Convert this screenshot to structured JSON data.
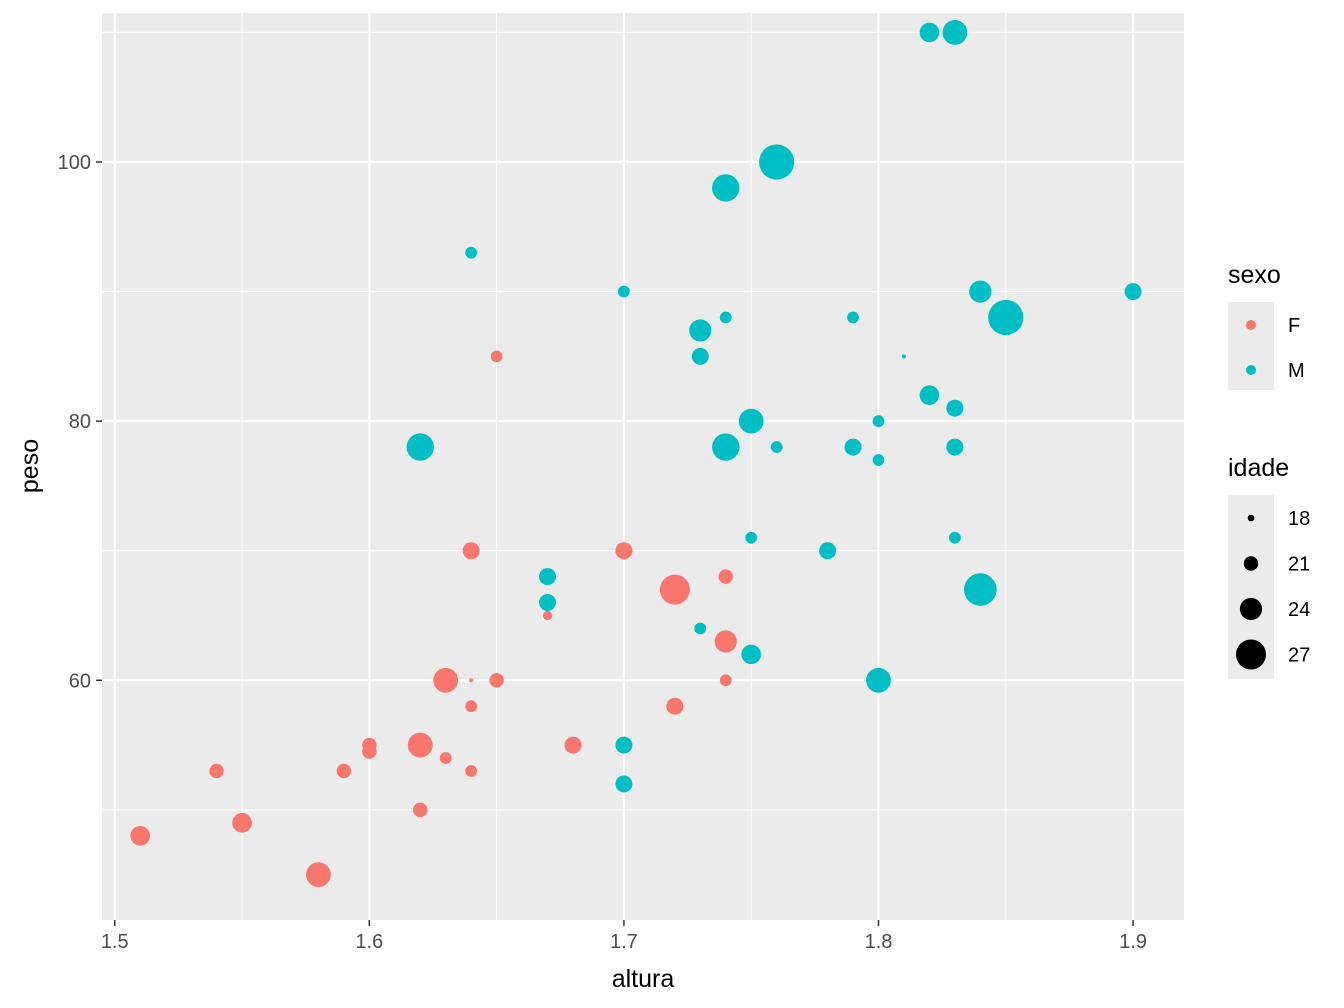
{
  "chart_data": {
    "type": "scatter",
    "xlabel": "altura",
    "ylabel": "peso",
    "xlim": [
      1.495,
      1.92
    ],
    "ylim": [
      41.5,
      111.5
    ],
    "x_ticks": [
      {
        "value": 1.5,
        "label": "1.5"
      },
      {
        "value": 1.6,
        "label": "1.6"
      },
      {
        "value": 1.7,
        "label": "1.7"
      },
      {
        "value": 1.8,
        "label": "1.8"
      },
      {
        "value": 1.9,
        "label": "1.9"
      }
    ],
    "y_ticks": [
      {
        "value": 60,
        "label": "60"
      },
      {
        "value": 80,
        "label": "80"
      },
      {
        "value": 100,
        "label": "100"
      }
    ],
    "x_minor": [
      1.55,
      1.65,
      1.75,
      1.85
    ],
    "y_minor": [
      50,
      70,
      90,
      110
    ],
    "grid": true,
    "background": "#ebebeb",
    "color_legend": {
      "title": "sexo",
      "items": [
        {
          "label": "F",
          "color": "#f8766d"
        },
        {
          "label": "M",
          "color": "#00bfc4"
        }
      ]
    },
    "size_legend": {
      "title": "idade",
      "items": [
        {
          "label": "18",
          "value": 18
        },
        {
          "label": "21",
          "value": 21
        },
        {
          "label": "24",
          "value": 24
        },
        {
          "label": "27",
          "value": 27
        }
      ]
    },
    "legend_position": "right",
    "series": [
      {
        "name": "F",
        "color": "#f8766d",
        "points": [
          {
            "x": 1.51,
            "y": 48,
            "idade": 23
          },
          {
            "x": 1.54,
            "y": 53,
            "idade": 21
          },
          {
            "x": 1.55,
            "y": 49,
            "idade": 23
          },
          {
            "x": 1.58,
            "y": 45,
            "idade": 25
          },
          {
            "x": 1.59,
            "y": 53,
            "idade": 21
          },
          {
            "x": 1.6,
            "y": 55,
            "idade": 21
          },
          {
            "x": 1.6,
            "y": 54.5,
            "idade": 21
          },
          {
            "x": 1.62,
            "y": 55,
            "idade": 25
          },
          {
            "x": 1.62,
            "y": 50,
            "idade": 21
          },
          {
            "x": 1.63,
            "y": 60,
            "idade": 25
          },
          {
            "x": 1.63,
            "y": 54,
            "idade": 20
          },
          {
            "x": 1.64,
            "y": 70,
            "idade": 22
          },
          {
            "x": 1.64,
            "y": 60,
            "idade": 17
          },
          {
            "x": 1.64,
            "y": 58,
            "idade": 20
          },
          {
            "x": 1.64,
            "y": 53,
            "idade": 20
          },
          {
            "x": 1.65,
            "y": 85,
            "idade": 20
          },
          {
            "x": 1.65,
            "y": 60,
            "idade": 21
          },
          {
            "x": 1.67,
            "y": 65,
            "idade": 19
          },
          {
            "x": 1.68,
            "y": 55,
            "idade": 22
          },
          {
            "x": 1.7,
            "y": 70,
            "idade": 22
          },
          {
            "x": 1.72,
            "y": 67,
            "idade": 27
          },
          {
            "x": 1.72,
            "y": 58,
            "idade": 22
          },
          {
            "x": 1.74,
            "y": 68,
            "idade": 21
          },
          {
            "x": 1.74,
            "y": 63,
            "idade": 24
          },
          {
            "x": 1.74,
            "y": 60,
            "idade": 20
          }
        ]
      },
      {
        "name": "M",
        "color": "#00bfc4",
        "points": [
          {
            "x": 1.62,
            "y": 78,
            "idade": 26
          },
          {
            "x": 1.64,
            "y": 93,
            "idade": 20
          },
          {
            "x": 1.67,
            "y": 68,
            "idade": 22
          },
          {
            "x": 1.67,
            "y": 66,
            "idade": 22
          },
          {
            "x": 1.7,
            "y": 90,
            "idade": 20
          },
          {
            "x": 1.7,
            "y": 55,
            "idade": 22
          },
          {
            "x": 1.7,
            "y": 52,
            "idade": 22
          },
          {
            "x": 1.73,
            "y": 87,
            "idade": 24
          },
          {
            "x": 1.73,
            "y": 85,
            "idade": 22
          },
          {
            "x": 1.73,
            "y": 64,
            "idade": 20
          },
          {
            "x": 1.74,
            "y": 98,
            "idade": 26
          },
          {
            "x": 1.74,
            "y": 88,
            "idade": 20
          },
          {
            "x": 1.74,
            "y": 78,
            "idade": 26
          },
          {
            "x": 1.75,
            "y": 80,
            "idade": 25
          },
          {
            "x": 1.75,
            "y": 71,
            "idade": 20
          },
          {
            "x": 1.75,
            "y": 62,
            "idade": 23
          },
          {
            "x": 1.76,
            "y": 100,
            "idade": 29
          },
          {
            "x": 1.76,
            "y": 78,
            "idade": 20
          },
          {
            "x": 1.78,
            "y": 70,
            "idade": 22
          },
          {
            "x": 1.79,
            "y": 88,
            "idade": 20
          },
          {
            "x": 1.79,
            "y": 78,
            "idade": 22
          },
          {
            "x": 1.8,
            "y": 80,
            "idade": 20
          },
          {
            "x": 1.8,
            "y": 77,
            "idade": 20
          },
          {
            "x": 1.8,
            "y": 60,
            "idade": 25
          },
          {
            "x": 1.81,
            "y": 85,
            "idade": 17
          },
          {
            "x": 1.82,
            "y": 110,
            "idade": 23
          },
          {
            "x": 1.82,
            "y": 82,
            "idade": 23
          },
          {
            "x": 1.83,
            "y": 110,
            "idade": 25
          },
          {
            "x": 1.83,
            "y": 81,
            "idade": 22
          },
          {
            "x": 1.83,
            "y": 78,
            "idade": 22
          },
          {
            "x": 1.83,
            "y": 71,
            "idade": 20
          },
          {
            "x": 1.84,
            "y": 90,
            "idade": 24
          },
          {
            "x": 1.84,
            "y": 67,
            "idade": 28
          },
          {
            "x": 1.85,
            "y": 88,
            "idade": 29
          },
          {
            "x": 1.9,
            "y": 90,
            "idade": 22
          }
        ]
      }
    ]
  }
}
